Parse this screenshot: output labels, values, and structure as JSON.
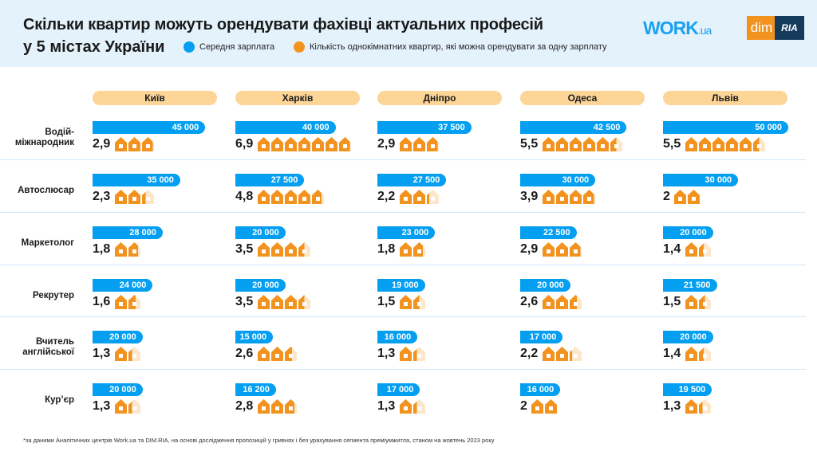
{
  "title_line1": "Скільки квартир можуть орендувати фахівці актуальних професій",
  "title_line2": "у 5 містах України",
  "logos": {
    "work": "WORK",
    "work_suffix": ".ua",
    "dim": "dim",
    "ria": "RIA"
  },
  "legend": [
    {
      "label": "Середня зарплата",
      "color": "#049ff0"
    },
    {
      "label": "Кількість однокімнатних квартир, які можна орендувати за одну зарплату",
      "color": "#f3931f"
    }
  ],
  "footnote": "*за даними Аналітичних центрів Work.ua та DIM.RIA, на основі дослідження пропозицій у гривнях і без урахування сегмента преміумжитла, станом на жовтень 2023 року",
  "chart_data": {
    "type": "bar",
    "cities": [
      "Київ",
      "Харків",
      "Дніпро",
      "Одеса",
      "Львів"
    ],
    "professions": [
      "Водій-\nміжнародник",
      "Автослюсар",
      "Маркетолог",
      "Рекрутер",
      "Вчитель\nанглійської",
      "Кур’єр"
    ],
    "series": [
      {
        "name": "Середня зарплата",
        "color": "#049ff0",
        "values": [
          [
            45000,
            40000,
            37500,
            42500,
            50000
          ],
          [
            35000,
            27500,
            27500,
            30000,
            30000
          ],
          [
            28000,
            20000,
            23000,
            22500,
            20000
          ],
          [
            24000,
            20000,
            19000,
            20000,
            21500
          ],
          [
            20000,
            15000,
            16000,
            17000,
            20000
          ],
          [
            20000,
            16200,
            17000,
            16000,
            19500
          ]
        ],
        "labels": [
          [
            "45 000",
            "40 000",
            "37 500",
            "42 500",
            "50 000"
          ],
          [
            "35 000",
            "27 500",
            "27 500",
            "30 000",
            "30 000"
          ],
          [
            "28 000",
            "20 000",
            "23 000",
            "22 500",
            "20 000"
          ],
          [
            "24 000",
            "20 000",
            "19 000",
            "20 000",
            "21 500"
          ],
          [
            "20 000",
            "15 000",
            "16 000",
            "17 000",
            "20 000"
          ],
          [
            "20 000",
            "16 200",
            "17 000",
            "16 000",
            "19 500"
          ]
        ]
      },
      {
        "name": "Кількість однокімнатних квартир, які можна орендувати за одну зарплату",
        "color": "#f3931f",
        "values": [
          [
            2.9,
            6.9,
            2.9,
            5.5,
            5.5
          ],
          [
            2.3,
            4.8,
            2.2,
            3.9,
            2
          ],
          [
            1.8,
            3.5,
            1.8,
            2.9,
            1.4
          ],
          [
            1.6,
            3.5,
            1.5,
            2.6,
            1.5
          ],
          [
            1.3,
            2.6,
            1.3,
            2.2,
            1.4
          ],
          [
            1.3,
            2.8,
            1.3,
            2,
            1.3
          ]
        ],
        "labels": [
          [
            "2,9",
            "6,9",
            "2,9",
            "5,5",
            "5,5"
          ],
          [
            "2,3",
            "4,8",
            "2,2",
            "3,9",
            "2"
          ],
          [
            "1,8",
            "3,5",
            "1,8",
            "2,9",
            "1,4"
          ],
          [
            "1,6",
            "3,5",
            "1,5",
            "2,6",
            "1,5"
          ],
          [
            "1,3",
            "2,6",
            "1,3",
            "2,2",
            "1,4"
          ],
          [
            "1,3",
            "2,8",
            "1,3",
            "2",
            "1,3"
          ]
        ]
      }
    ]
  }
}
